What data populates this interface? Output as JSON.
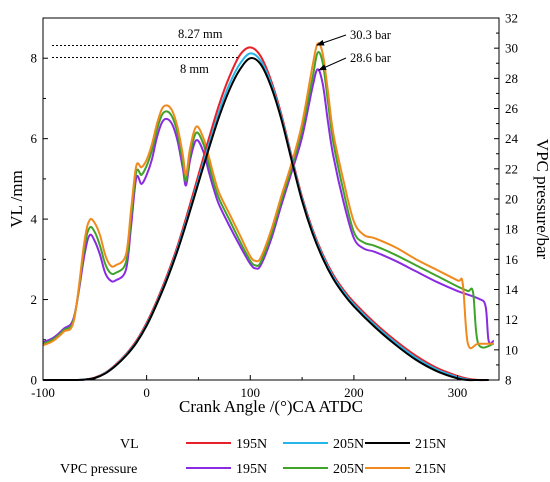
{
  "chart_data": {
    "type": "line",
    "xlabel": "Crank Angle /(°)CA ATDC",
    "ylabel": "VL  /mm",
    "y2label": "VPC pressure/bar",
    "xlim": [
      -100,
      340
    ],
    "ylim": [
      0,
      9
    ],
    "y2lim": [
      8,
      32
    ],
    "xticks": [
      "-100",
      "0",
      "100",
      "200",
      "300"
    ],
    "yticks": [
      "0",
      "2",
      "4",
      "6",
      "8"
    ],
    "y2ticks": [
      "8",
      "10",
      "12",
      "14",
      "16",
      "18",
      "20",
      "22",
      "24",
      "26",
      "28",
      "30",
      "32"
    ],
    "annotations": {
      "vl_max": "8.27 mm",
      "vl_min": "8 mm",
      "p_max": "30.3 bar",
      "p_min": "28.6 bar"
    },
    "legend": {
      "vl_label": "VL",
      "vpc_label": "VPC pressure",
      "entries": [
        "195N",
        "205N",
        "215N"
      ]
    },
    "series": [
      {
        "name": "195N",
        "group": "VL",
        "axis": "left",
        "color": "#e8202a",
        "x": [
          -100,
          -70,
          -60,
          -50,
          -40,
          -30,
          -20,
          -10,
          0,
          10,
          20,
          30,
          40,
          50,
          60,
          70,
          80,
          90,
          100,
          110,
          120,
          130,
          140,
          150,
          160,
          170,
          180,
          190,
          200,
          220,
          240,
          260,
          280,
          300,
          310,
          320,
          330
        ],
        "y": [
          0,
          0,
          0.01,
          0.06,
          0.18,
          0.38,
          0.64,
          0.97,
          1.42,
          1.98,
          2.62,
          3.35,
          4.2,
          5.1,
          6.0,
          6.85,
          7.55,
          8.08,
          8.27,
          8.05,
          7.45,
          6.6,
          5.55,
          4.55,
          3.75,
          3.12,
          2.62,
          2.24,
          1.93,
          1.42,
          0.98,
          0.6,
          0.3,
          0.1,
          0.03,
          0,
          0
        ]
      },
      {
        "name": "205N",
        "group": "VL",
        "axis": "left",
        "color": "#25b5e8",
        "x": [
          -100,
          -70,
          -60,
          -50,
          -40,
          -30,
          -20,
          -10,
          0,
          10,
          20,
          30,
          40,
          50,
          60,
          70,
          80,
          90,
          100,
          110,
          120,
          130,
          140,
          150,
          160,
          170,
          180,
          190,
          200,
          220,
          240,
          260,
          280,
          300,
          310,
          320,
          330
        ],
        "y": [
          0,
          0,
          0.01,
          0.05,
          0.17,
          0.36,
          0.62,
          0.94,
          1.38,
          1.93,
          2.56,
          3.28,
          4.1,
          4.98,
          5.85,
          6.68,
          7.36,
          7.86,
          8.12,
          7.94,
          7.38,
          6.54,
          5.5,
          4.5,
          3.7,
          3.07,
          2.57,
          2.19,
          1.88,
          1.37,
          0.93,
          0.55,
          0.26,
          0.07,
          0.01,
          0,
          0
        ]
      },
      {
        "name": "215N",
        "group": "VL",
        "axis": "left",
        "color": "#000000",
        "x": [
          -100,
          -70,
          -60,
          -50,
          -40,
          -30,
          -20,
          -10,
          0,
          10,
          20,
          30,
          40,
          50,
          60,
          70,
          80,
          90,
          100,
          110,
          120,
          130,
          140,
          150,
          160,
          170,
          180,
          190,
          200,
          220,
          240,
          260,
          280,
          300,
          310,
          320,
          330
        ],
        "y": [
          0,
          0,
          0.01,
          0.05,
          0.16,
          0.35,
          0.6,
          0.92,
          1.35,
          1.9,
          2.52,
          3.23,
          4.04,
          4.9,
          5.75,
          6.55,
          7.22,
          7.72,
          8.0,
          7.85,
          7.3,
          6.48,
          5.45,
          4.45,
          3.65,
          3.02,
          2.52,
          2.14,
          1.83,
          1.32,
          0.88,
          0.5,
          0.22,
          0.04,
          0,
          0,
          0
        ]
      },
      {
        "name": "195N",
        "group": "VPC pressure",
        "axis": "right",
        "color": "#8a2be2",
        "x": [
          -100,
          -90,
          -80,
          -70,
          -60,
          -55,
          -50,
          -45,
          -40,
          -35,
          -30,
          -20,
          -15,
          -10,
          -5,
          0,
          5,
          10,
          15,
          20,
          25,
          30,
          35,
          38,
          42,
          48,
          55,
          60,
          65,
          70,
          80,
          90,
          100,
          105,
          110,
          120,
          130,
          140,
          150,
          160,
          165,
          170,
          175,
          180,
          190,
          200,
          210,
          220,
          240,
          260,
          280,
          300,
          320,
          327,
          330,
          335
        ],
        "y": [
          10.5,
          10.8,
          11.4,
          12.2,
          16.3,
          17.6,
          17.2,
          16.3,
          15.1,
          14.6,
          14.6,
          15.3,
          18.2,
          21.4,
          21.0,
          21.6,
          22.6,
          24.1,
          25.1,
          25.3,
          24.9,
          23.8,
          22.0,
          20.9,
          22.6,
          23.9,
          23.1,
          21.8,
          20.6,
          19.6,
          18.2,
          16.9,
          15.7,
          15.4,
          15.6,
          17.3,
          19.6,
          21.8,
          24.1,
          27.4,
          28.6,
          27.6,
          25.1,
          22.9,
          19.8,
          17.4,
          16.7,
          16.5,
          15.9,
          15.2,
          14.5,
          13.9,
          13.4,
          12.9,
          10.6,
          10.6
        ]
      },
      {
        "name": "205N",
        "group": "VPC pressure",
        "axis": "right",
        "color": "#3fa32a",
        "x": [
          -100,
          -90,
          -80,
          -70,
          -60,
          -55,
          -50,
          -45,
          -40,
          -35,
          -30,
          -20,
          -15,
          -10,
          -5,
          0,
          5,
          10,
          15,
          20,
          25,
          30,
          35,
          38,
          42,
          48,
          55,
          60,
          65,
          70,
          80,
          90,
          100,
          105,
          110,
          120,
          130,
          140,
          150,
          160,
          165,
          170,
          175,
          180,
          190,
          200,
          210,
          220,
          240,
          260,
          280,
          300,
          310,
          315,
          320,
          335
        ],
        "y": [
          10.4,
          10.7,
          11.3,
          12.1,
          16.8,
          18.1,
          17.8,
          16.9,
          15.7,
          15.1,
          15.1,
          15.8,
          18.8,
          21.8,
          21.6,
          22.2,
          23.2,
          24.6,
          25.6,
          25.8,
          25.4,
          24.3,
          22.4,
          21.2,
          23.0,
          24.4,
          23.6,
          22.3,
          21.0,
          20.0,
          18.6,
          17.2,
          15.9,
          15.6,
          15.8,
          17.6,
          19.9,
          22.1,
          24.6,
          28.0,
          29.7,
          29.0,
          26.4,
          23.8,
          20.5,
          17.8,
          17.1,
          16.9,
          16.3,
          15.6,
          14.9,
          14.2,
          13.9,
          13.8,
          10.4,
          10.4
        ]
      },
      {
        "name": "215N",
        "group": "VPC pressure",
        "axis": "right",
        "color": "#f08a1e",
        "x": [
          -100,
          -90,
          -80,
          -70,
          -60,
          -55,
          -50,
          -45,
          -40,
          -35,
          -30,
          -20,
          -15,
          -10,
          -5,
          0,
          5,
          10,
          15,
          20,
          25,
          30,
          35,
          38,
          42,
          48,
          55,
          60,
          65,
          70,
          80,
          90,
          100,
          105,
          110,
          120,
          130,
          140,
          150,
          160,
          165,
          170,
          175,
          180,
          190,
          200,
          210,
          220,
          240,
          260,
          280,
          300,
          305,
          310,
          320,
          335
        ],
        "y": [
          10.3,
          10.6,
          11.2,
          12.0,
          17.2,
          18.6,
          18.4,
          17.6,
          16.3,
          15.6,
          15.6,
          16.3,
          19.3,
          22.2,
          22.1,
          22.6,
          23.6,
          25.0,
          26.0,
          26.2,
          25.8,
          24.7,
          22.9,
          21.6,
          23.4,
          24.8,
          24.0,
          22.8,
          21.5,
          20.4,
          19.0,
          17.6,
          16.2,
          15.9,
          16.1,
          17.9,
          20.2,
          22.4,
          25.0,
          28.8,
          30.3,
          29.6,
          27.1,
          24.4,
          21.2,
          18.5,
          17.6,
          17.4,
          16.8,
          16.0,
          15.3,
          14.6,
          14.4,
          10.4,
          10.4,
          10.4
        ]
      }
    ]
  }
}
